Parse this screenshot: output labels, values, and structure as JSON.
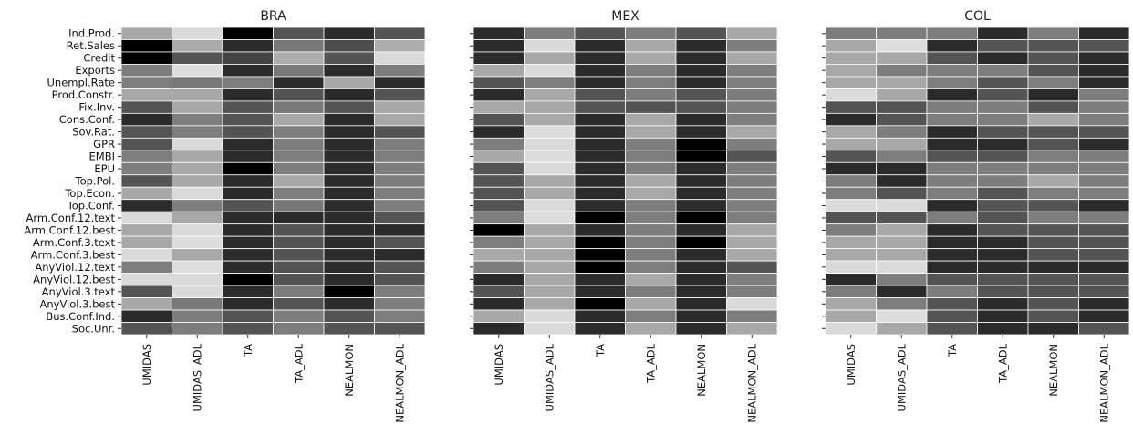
{
  "chart_data": [
    {
      "type": "heatmap",
      "title": "BRA",
      "rows": [
        "Ind.Prod.",
        "Ret.Sales",
        "Credit",
        "Exports",
        "Unempl.Rate",
        "Prod.Constr.",
        "Fix.Inv.",
        "Cons.Conf.",
        "Sov.Rat.",
        "GPR",
        "EMBI",
        "EPU",
        "Top.Pol.",
        "Top.Econ.",
        "Top.Conf.",
        "Arm.Conf.12.text",
        "Arm.Conf.12.best",
        "Arm.Conf.3.text",
        "Arm.Conf.3.best",
        "AnyViol.12.text",
        "AnyViol.12.best",
        "AnyViol.3.text",
        "AnyViol.3.best",
        "Bus.Conf.Ind.",
        "Soc.Unr."
      ],
      "columns": [
        "UMIDAS",
        "UMIDAS_ADL",
        "TA",
        "TA_ADL",
        "NEALMON",
        "NEALMON_ADL"
      ],
      "values": [
        [
          0.7,
          0.91,
          0.0,
          0.35,
          0.18,
          0.35
        ],
        [
          0.0,
          0.71,
          0.18,
          0.5,
          0.32,
          0.72
        ],
        [
          0.0,
          0.35,
          0.28,
          0.72,
          0.35,
          0.91
        ],
        [
          0.52,
          0.92,
          0.18,
          0.5,
          0.18,
          0.52
        ],
        [
          0.52,
          0.5,
          0.52,
          0.18,
          0.7,
          0.18
        ],
        [
          0.7,
          0.7,
          0.18,
          0.35,
          0.18,
          0.35
        ],
        [
          0.35,
          0.7,
          0.35,
          0.5,
          0.35,
          0.7
        ],
        [
          0.18,
          0.52,
          0.35,
          0.7,
          0.18,
          0.7
        ],
        [
          0.35,
          0.52,
          0.35,
          0.52,
          0.18,
          0.35
        ],
        [
          0.35,
          0.91,
          0.18,
          0.52,
          0.18,
          0.52
        ],
        [
          0.52,
          0.7,
          0.18,
          0.52,
          0.18,
          0.52
        ],
        [
          0.52,
          0.7,
          0.0,
          0.52,
          0.18,
          0.52
        ],
        [
          0.35,
          0.7,
          0.18,
          0.7,
          0.18,
          0.52
        ],
        [
          0.7,
          0.91,
          0.18,
          0.52,
          0.18,
          0.52
        ],
        [
          0.18,
          0.52,
          0.35,
          0.5,
          0.18,
          0.52
        ],
        [
          0.91,
          0.7,
          0.18,
          0.18,
          0.18,
          0.35
        ],
        [
          0.7,
          0.91,
          0.18,
          0.35,
          0.18,
          0.18
        ],
        [
          0.7,
          0.92,
          0.18,
          0.35,
          0.18,
          0.35
        ],
        [
          0.91,
          0.7,
          0.18,
          0.35,
          0.18,
          0.18
        ],
        [
          0.52,
          0.92,
          0.18,
          0.35,
          0.18,
          0.35
        ],
        [
          0.91,
          0.91,
          0.0,
          0.35,
          0.18,
          0.35
        ],
        [
          0.35,
          0.91,
          0.18,
          0.52,
          0.0,
          0.52
        ],
        [
          0.7,
          0.5,
          0.18,
          0.35,
          0.18,
          0.52
        ],
        [
          0.18,
          0.52,
          0.35,
          0.52,
          0.35,
          0.52
        ],
        [
          0.35,
          0.52,
          0.35,
          0.52,
          0.35,
          0.35
        ]
      ]
    },
    {
      "type": "heatmap",
      "title": "MEX",
      "rows": [
        "Ind.Prod.",
        "Ret.Sales",
        "Credit",
        "Exports",
        "Unempl.Rate",
        "Prod.Constr.",
        "Fix.Inv.",
        "Cons.Conf.",
        "Sov.Rat.",
        "GPR",
        "EMBI",
        "EPU",
        "Top.Pol.",
        "Top.Econ.",
        "Top.Conf.",
        "Arm.Conf.12.text",
        "Arm.Conf.12.best",
        "Arm.Conf.3.text",
        "Arm.Conf.3.best",
        "AnyViol.12.text",
        "AnyViol.12.best",
        "AnyViol.3.text",
        "AnyViol.3.best",
        "Bus.Conf.Ind.",
        "Soc.Unr."
      ],
      "columns": [
        "UMIDAS",
        "UMIDAS_ADL",
        "TA",
        "TA_ADL",
        "NEALMON",
        "NEALMON_ADL"
      ],
      "values": [
        [
          0.18,
          0.52,
          0.35,
          0.52,
          0.35,
          0.7
        ],
        [
          0.18,
          0.91,
          0.18,
          0.7,
          0.18,
          0.52
        ],
        [
          0.18,
          0.7,
          0.18,
          0.7,
          0.18,
          0.7
        ],
        [
          0.7,
          0.91,
          0.18,
          0.52,
          0.18,
          0.52
        ],
        [
          0.35,
          0.52,
          0.18,
          0.52,
          0.18,
          0.52
        ],
        [
          0.18,
          0.7,
          0.35,
          0.52,
          0.35,
          0.52
        ],
        [
          0.7,
          0.7,
          0.35,
          0.35,
          0.35,
          0.52
        ],
        [
          0.35,
          0.7,
          0.18,
          0.7,
          0.18,
          0.52
        ],
        [
          0.18,
          0.92,
          0.18,
          0.7,
          0.18,
          0.7
        ],
        [
          0.52,
          0.91,
          0.18,
          0.52,
          0.0,
          0.52
        ],
        [
          0.7,
          0.92,
          0.18,
          0.52,
          0.0,
          0.35
        ],
        [
          0.35,
          0.91,
          0.18,
          0.52,
          0.18,
          0.52
        ],
        [
          0.35,
          0.7,
          0.18,
          0.7,
          0.18,
          0.52
        ],
        [
          0.35,
          0.7,
          0.18,
          0.7,
          0.18,
          0.52
        ],
        [
          0.35,
          0.91,
          0.18,
          0.52,
          0.18,
          0.52
        ],
        [
          0.52,
          0.92,
          0.0,
          0.52,
          0.0,
          0.52
        ],
        [
          0.0,
          0.7,
          0.18,
          0.52,
          0.18,
          0.7
        ],
        [
          0.52,
          0.7,
          0.0,
          0.52,
          0.0,
          0.7
        ],
        [
          0.7,
          0.7,
          0.0,
          0.52,
          0.18,
          0.7
        ],
        [
          0.52,
          0.7,
          0.0,
          0.52,
          0.18,
          0.35
        ],
        [
          0.18,
          0.7,
          0.18,
          0.7,
          0.18,
          0.52
        ],
        [
          0.35,
          0.7,
          0.18,
          0.52,
          0.18,
          0.52
        ],
        [
          0.18,
          0.7,
          0.0,
          0.7,
          0.18,
          0.91
        ],
        [
          0.7,
          0.91,
          0.18,
          0.52,
          0.18,
          0.52
        ],
        [
          0.18,
          0.91,
          0.18,
          0.7,
          0.18,
          0.7
        ]
      ]
    },
    {
      "type": "heatmap",
      "title": "COL",
      "rows": [
        "Ind.Prod.",
        "Ret.Sales",
        "Credit",
        "Exports",
        "Unempl.Rate",
        "Prod.Constr.",
        "Fix.Inv.",
        "Cons.Conf.",
        "Sov.Rat.",
        "GPR",
        "EMBI",
        "EPU",
        "Top.Pol.",
        "Top.Econ.",
        "Top.Conf.",
        "Arm.Conf.12.text",
        "Arm.Conf.12.best",
        "Arm.Conf.3.text",
        "Arm.Conf.3.best",
        "AnyViol.12.text",
        "AnyViol.12.best",
        "AnyViol.3.text",
        "AnyViol.3.best",
        "Bus.Conf.Ind.",
        "Soc.Unr."
      ],
      "columns": [
        "UMIDAS",
        "UMIDAS_ADL",
        "TA",
        "TA_ADL",
        "NEALMON",
        "NEALMON_ADL"
      ],
      "values": [
        [
          0.52,
          0.52,
          0.52,
          0.18,
          0.52,
          0.18
        ],
        [
          0.7,
          0.92,
          0.18,
          0.35,
          0.35,
          0.35
        ],
        [
          0.7,
          0.7,
          0.35,
          0.18,
          0.35,
          0.18
        ],
        [
          0.7,
          0.52,
          0.52,
          0.52,
          0.35,
          0.18
        ],
        [
          0.7,
          0.7,
          0.52,
          0.35,
          0.52,
          0.18
        ],
        [
          0.91,
          0.7,
          0.18,
          0.35,
          0.18,
          0.52
        ],
        [
          0.35,
          0.35,
          0.52,
          0.52,
          0.35,
          0.52
        ],
        [
          0.18,
          0.35,
          0.52,
          0.52,
          0.7,
          0.52
        ],
        [
          0.7,
          0.52,
          0.18,
          0.35,
          0.35,
          0.35
        ],
        [
          0.7,
          0.7,
          0.18,
          0.18,
          0.35,
          0.18
        ],
        [
          0.35,
          0.52,
          0.35,
          0.35,
          0.52,
          0.52
        ],
        [
          0.18,
          0.18,
          0.52,
          0.52,
          0.52,
          0.52
        ],
        [
          0.52,
          0.18,
          0.52,
          0.52,
          0.7,
          0.52
        ],
        [
          0.52,
          0.35,
          0.52,
          0.35,
          0.52,
          0.52
        ],
        [
          0.91,
          0.91,
          0.18,
          0.35,
          0.35,
          0.18
        ],
        [
          0.35,
          0.35,
          0.52,
          0.35,
          0.52,
          0.52
        ],
        [
          0.52,
          0.7,
          0.18,
          0.35,
          0.35,
          0.35
        ],
        [
          0.7,
          0.7,
          0.18,
          0.18,
          0.35,
          0.35
        ],
        [
          0.7,
          0.7,
          0.18,
          0.18,
          0.35,
          0.35
        ],
        [
          0.91,
          0.91,
          0.18,
          0.18,
          0.18,
          0.18
        ],
        [
          0.18,
          0.52,
          0.35,
          0.35,
          0.35,
          0.35
        ],
        [
          0.52,
          0.18,
          0.52,
          0.35,
          0.35,
          0.35
        ],
        [
          0.7,
          0.52,
          0.35,
          0.18,
          0.35,
          0.18
        ],
        [
          0.7,
          0.92,
          0.35,
          0.18,
          0.35,
          0.18
        ],
        [
          0.91,
          0.7,
          0.35,
          0.18,
          0.18,
          0.35
        ]
      ]
    }
  ],
  "colors": {
    "low": "#000000",
    "high": "#f0f0f0",
    "grid": "#ffffff"
  }
}
